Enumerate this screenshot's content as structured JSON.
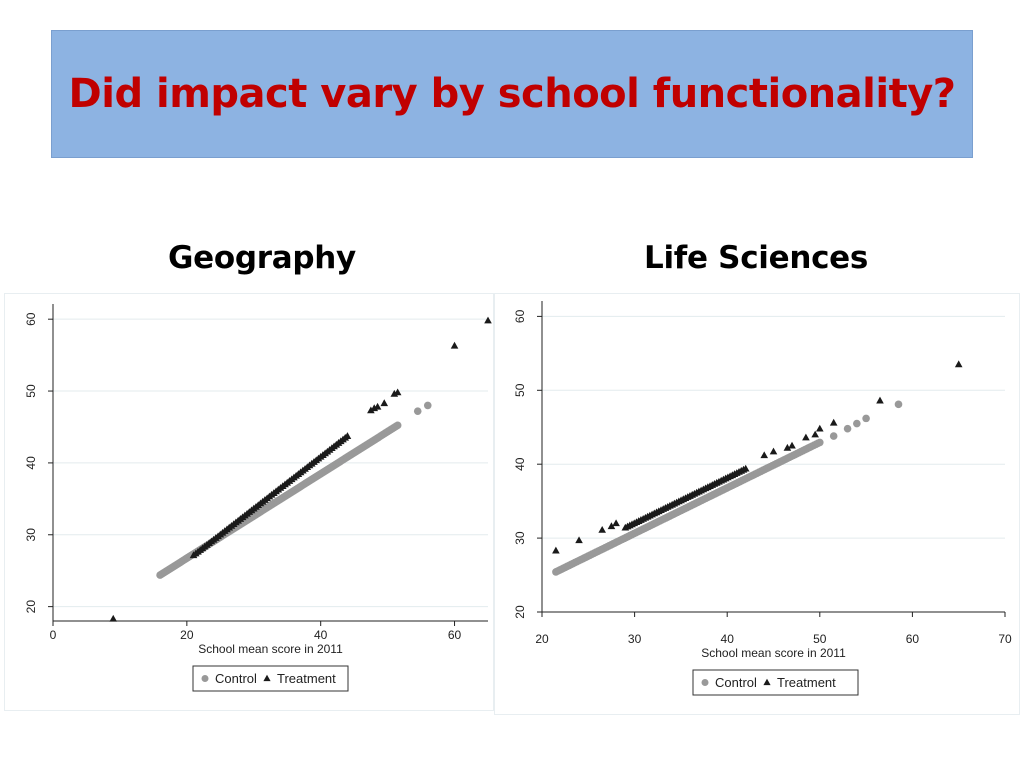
{
  "slide": {
    "title": "Did impact vary by school functionality?",
    "title_color": "#c00000",
    "title_bg": "#8db3e2"
  },
  "chart_data": [
    {
      "type": "scatter",
      "subtitle": "Geography",
      "xlabel": "School mean score in 2011",
      "ylabel": "",
      "xlim": [
        0,
        65
      ],
      "ylim": [
        18,
        61
      ],
      "xticks": [
        0,
        20,
        40,
        60
      ],
      "yticks": [
        20,
        30,
        40,
        50,
        60
      ],
      "grid": "horizontal",
      "legend_position": "bottom",
      "series": [
        {
          "name": "Control",
          "marker": "circle",
          "color": "#999999",
          "fit": {
            "slope": 0.587,
            "intercept": 15.0,
            "x_range": [
              16,
              51.5
            ],
            "n": 150
          },
          "extra_points": [
            [
              54.5,
              47.2
            ],
            [
              56,
              48.0
            ]
          ]
        },
        {
          "name": "Treatment",
          "marker": "triangle",
          "color": "#1a1a1a",
          "fit": {
            "slope": 0.721,
            "intercept": 12.0,
            "x_range": [
              21,
              44
            ],
            "n": 70
          },
          "extra_points": [
            [
              9,
              18.3
            ],
            [
              47.5,
              47.3
            ],
            [
              48,
              47.6
            ],
            [
              48.5,
              47.8
            ],
            [
              49.5,
              48.3
            ],
            [
              51,
              49.6
            ],
            [
              51.5,
              49.8
            ],
            [
              60,
              56.3
            ],
            [
              65,
              59.8
            ]
          ]
        }
      ]
    },
    {
      "type": "scatter",
      "subtitle": "Life Sciences",
      "xlabel": "School mean score in 2011",
      "ylabel": "",
      "xlim": [
        20,
        70
      ],
      "ylim": [
        20,
        61
      ],
      "xticks": [
        20,
        30,
        40,
        50,
        60,
        70
      ],
      "yticks": [
        20,
        30,
        40,
        50,
        60
      ],
      "grid": "horizontal",
      "legend_position": "bottom",
      "series": [
        {
          "name": "Control",
          "marker": "circle",
          "color": "#999999",
          "fit": {
            "slope": 0.615,
            "intercept": 12.2,
            "x_range": [
              21.5,
              50
            ],
            "n": 140
          },
          "extra_points": [
            [
              51.5,
              43.8
            ],
            [
              53,
              44.8
            ],
            [
              54,
              45.5
            ],
            [
              55,
              46.2
            ],
            [
              58.5,
              48.1
            ]
          ]
        },
        {
          "name": "Treatment",
          "marker": "triangle",
          "color": "#1a1a1a",
          "fit": {
            "slope": 0.614,
            "intercept": 13.6,
            "x_range": [
              29,
              42
            ],
            "n": 55
          },
          "extra_points": [
            [
              21.5,
              28.3
            ],
            [
              24,
              29.7
            ],
            [
              26.5,
              31.1
            ],
            [
              27.5,
              31.6
            ],
            [
              28,
              32.0
            ],
            [
              44,
              41.2
            ],
            [
              45,
              41.7
            ],
            [
              46.5,
              42.2
            ],
            [
              47,
              42.5
            ],
            [
              48.5,
              43.6
            ],
            [
              49.5,
              44.0
            ],
            [
              50,
              44.8
            ],
            [
              51.5,
              45.6
            ],
            [
              56.5,
              48.6
            ],
            [
              65,
              53.5
            ]
          ]
        }
      ]
    }
  ]
}
